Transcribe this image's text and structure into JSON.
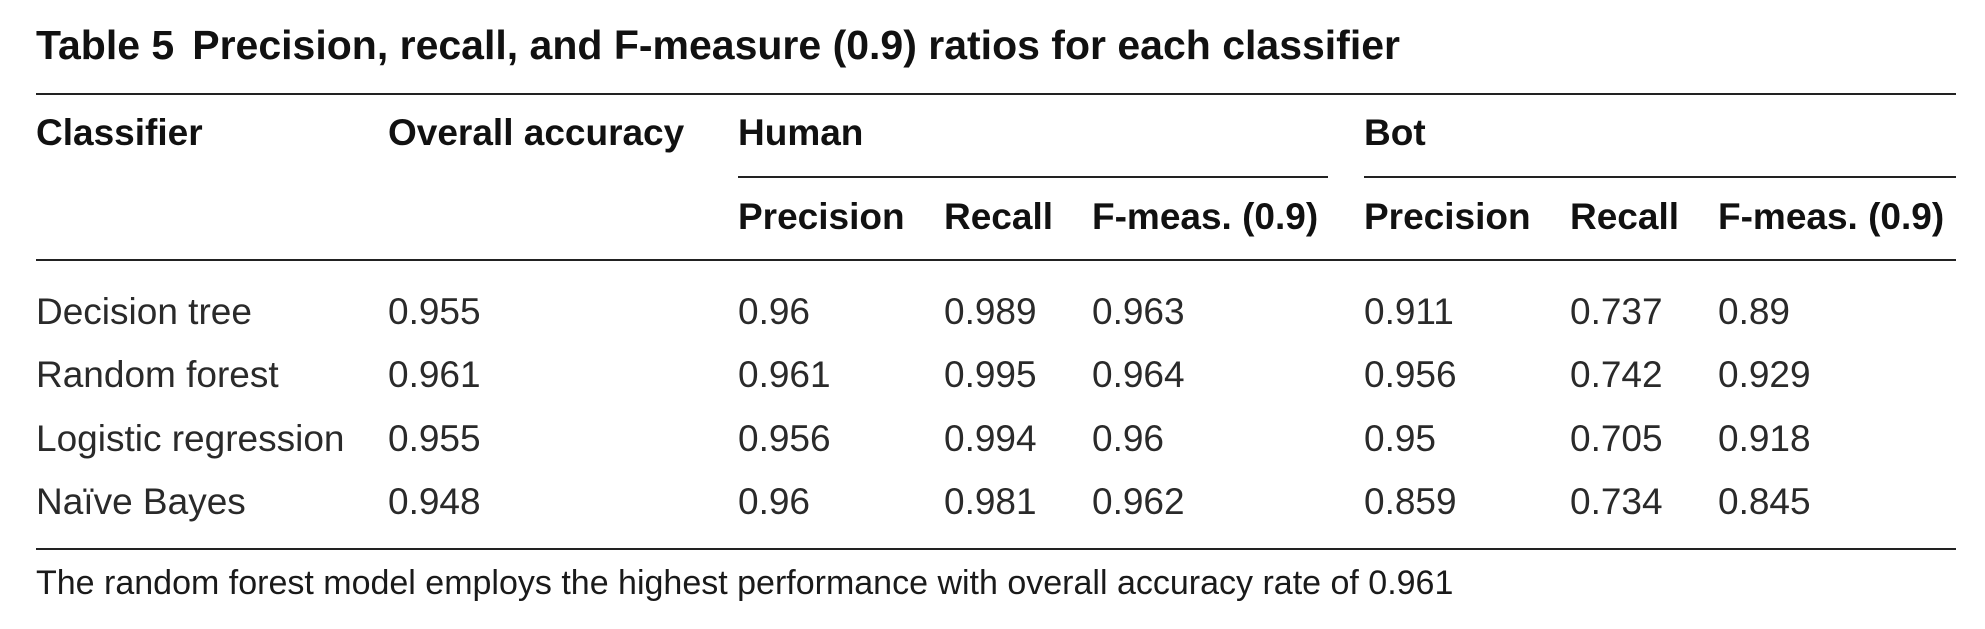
{
  "table": {
    "label": "Table 5",
    "title": "Precision, recall, and F-measure (0.9) ratios for each classifier",
    "headers": {
      "classifier": "Classifier",
      "overall": "Overall accuracy",
      "group_human": "Human",
      "group_bot": "Bot",
      "sub": [
        "Precision",
        "Recall",
        "F-meas. (0.9)",
        "Precision",
        "Recall",
        "F-meas. (0.9)"
      ]
    },
    "rows": [
      {
        "classifier": "Decision tree",
        "overall": "0.955",
        "human_precision": "0.96",
        "human_recall": "0.989",
        "human_f": "0.963",
        "bot_precision": "0.911",
        "bot_recall": "0.737",
        "bot_f": "0.89"
      },
      {
        "classifier": "Random forest",
        "overall": "0.961",
        "human_precision": "0.961",
        "human_recall": "0.995",
        "human_f": "0.964",
        "bot_precision": "0.956",
        "bot_recall": "0.742",
        "bot_f": "0.929"
      },
      {
        "classifier": "Logistic regression",
        "overall": "0.955",
        "human_precision": "0.956",
        "human_recall": "0.994",
        "human_f": "0.96",
        "bot_precision": "0.95",
        "bot_recall": "0.705",
        "bot_f": "0.918"
      },
      {
        "classifier": "Naïve Bayes",
        "overall": "0.948",
        "human_precision": "0.96",
        "human_recall": "0.981",
        "human_f": "0.962",
        "bot_precision": "0.859",
        "bot_recall": "0.734",
        "bot_f": "0.845"
      }
    ],
    "footnote": "The random forest model employs the highest performance with overall accuracy rate of 0.961"
  }
}
